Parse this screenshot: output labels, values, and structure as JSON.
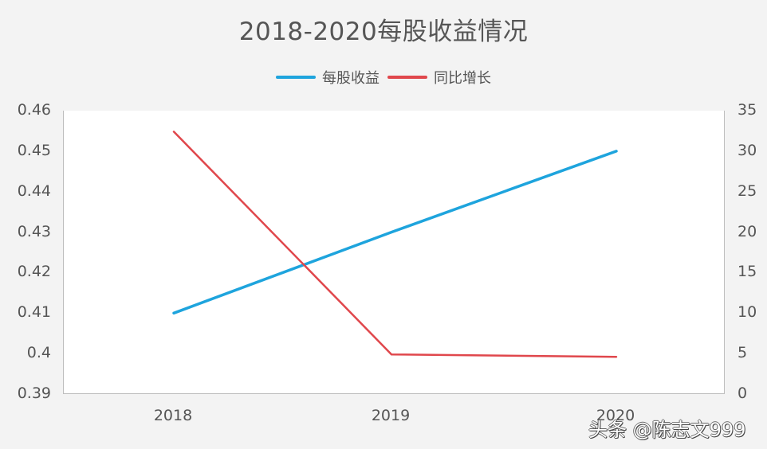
{
  "chart_data": {
    "type": "line",
    "title": "2018-2020每股收益情况",
    "categories": [
      "2018",
      "2019",
      "2020"
    ],
    "series": [
      {
        "name": "每股收益",
        "axis": "left",
        "color": "#1ea4dd",
        "values": [
          0.41,
          0.43,
          0.45
        ]
      },
      {
        "name": "同比增长",
        "axis": "right",
        "color": "#e0474c",
        "values": [
          32.4,
          4.9,
          4.6
        ]
      }
    ],
    "xlabel": "",
    "ylabel_left": "",
    "ylabel_right": "",
    "ylim_left": [
      0.39,
      0.46
    ],
    "ylim_right": [
      0,
      35
    ],
    "yticks_left": [
      "0.46",
      "0.45",
      "0.44",
      "0.43",
      "0.42",
      "0.41",
      "0.4",
      "0.39"
    ],
    "yticks_right": [
      "35",
      "30",
      "25",
      "20",
      "15",
      "10",
      "5",
      "0"
    ],
    "legend_position": "top",
    "grid": false
  },
  "watermark": "头条 @陈志文999"
}
